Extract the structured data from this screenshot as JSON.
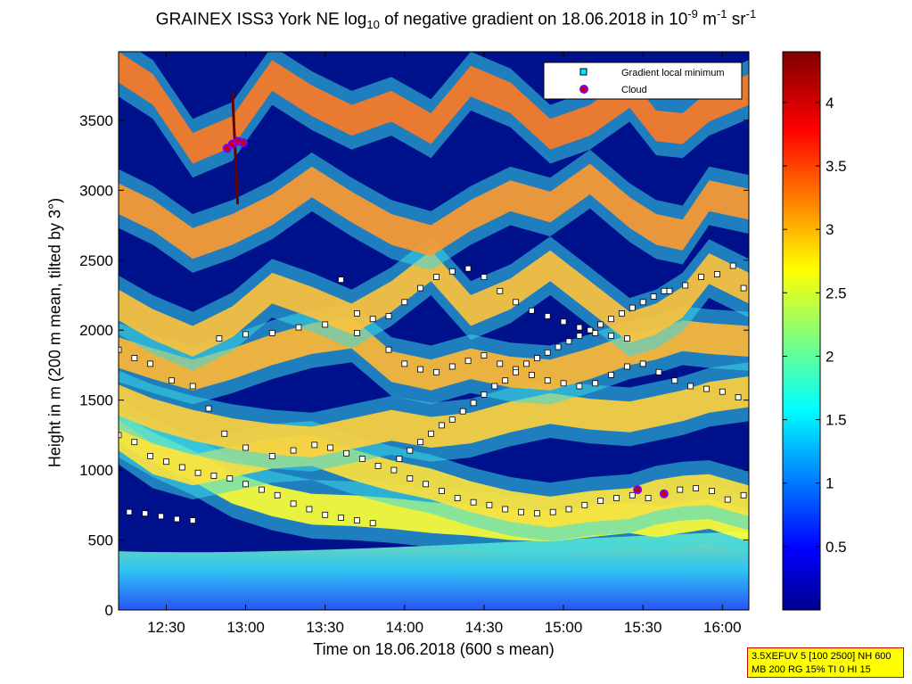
{
  "chart_data": {
    "type": "heatmap",
    "title": {
      "prefix": "GRAINEX ISS3 York NE log",
      "prefix_sub": "10",
      "middle": " of negative gradient on 18.06.2018 in 10",
      "unit_sup1": "-9",
      "unit_mid": " m",
      "unit_sup2": "-1",
      "unit_end": " sr",
      "unit_sup3": "-1"
    },
    "xlabel": "Time on 18.06.2018 (600 s mean)",
    "ylabel": "Height in m (200 m mean, tilted by 3°)",
    "x_ticks": [
      "12:30",
      "13:00",
      "13:30",
      "14:00",
      "14:30",
      "15:00",
      "15:30",
      "16:00"
    ],
    "x_tick_minutes": [
      750,
      780,
      810,
      840,
      870,
      900,
      930,
      960
    ],
    "xlim_minutes": [
      732,
      970
    ],
    "y_ticks": [
      "0",
      "500",
      "1000",
      "1500",
      "2000",
      "2500",
      "3000",
      "3500"
    ],
    "ylim": [
      0,
      3990
    ],
    "colorbar": {
      "ticks": [
        "0.5",
        "1",
        "1.5",
        "2",
        "2.5",
        "3",
        "3.5",
        "4"
      ],
      "range": [
        0,
        4.4
      ],
      "colormap": "jet"
    },
    "legend": {
      "placement": "top-right",
      "entries": [
        {
          "label": "Gradient local minimum",
          "marker": "square",
          "color": "#00e5ff"
        },
        {
          "label": "Cloud",
          "marker": "circle",
          "color": "#cc0000",
          "edge": "#7a00ff"
        }
      ]
    },
    "layers": [
      {
        "name": "inner",
        "color": "#ffff33",
        "points": [
          [
            732,
            1300
          ],
          [
            745,
            1160
          ],
          [
            760,
            1030
          ],
          [
            775,
            870
          ],
          [
            790,
            780
          ],
          [
            805,
            720
          ],
          [
            820,
            710
          ],
          [
            835,
            690
          ],
          [
            850,
            660
          ],
          [
            865,
            640
          ],
          [
            880,
            610
          ],
          [
            895,
            600
          ],
          [
            910,
            630
          ],
          [
            925,
            660
          ],
          [
            935,
            630
          ],
          [
            945,
            660
          ],
          [
            955,
            690
          ],
          [
            970,
            600
          ]
        ]
      },
      {
        "name": "L1",
        "color": "#ffe23a",
        "points": [
          [
            732,
            1250
          ],
          [
            745,
            1080
          ],
          [
            760,
            1000
          ],
          [
            775,
            1060
          ],
          [
            790,
            1120
          ],
          [
            805,
            1140
          ],
          [
            820,
            1040
          ],
          [
            835,
            960
          ],
          [
            850,
            900
          ],
          [
            865,
            810
          ],
          [
            880,
            740
          ],
          [
            895,
            700
          ],
          [
            910,
            740
          ],
          [
            925,
            760
          ],
          [
            935,
            820
          ],
          [
            945,
            850
          ],
          [
            955,
            860
          ],
          [
            970,
            780
          ]
        ]
      },
      {
        "name": "L2",
        "color": "#ffd23a",
        "points": [
          [
            732,
            1500
          ],
          [
            745,
            1400
          ],
          [
            760,
            1320
          ],
          [
            775,
            1260
          ],
          [
            790,
            1220
          ],
          [
            805,
            1200
          ],
          [
            820,
            1260
          ],
          [
            835,
            1320
          ],
          [
            850,
            1270
          ],
          [
            865,
            1300
          ],
          [
            880,
            1380
          ],
          [
            895,
            1440
          ],
          [
            910,
            1400
          ],
          [
            925,
            1380
          ],
          [
            935,
            1420
          ],
          [
            945,
            1460
          ],
          [
            955,
            1520
          ],
          [
            970,
            1560
          ]
        ]
      },
      {
        "name": "L3",
        "color": "#ffb833",
        "points": [
          [
            732,
            1840
          ],
          [
            745,
            1760
          ],
          [
            760,
            1680
          ],
          [
            775,
            1760
          ],
          [
            790,
            1860
          ],
          [
            805,
            1940
          ],
          [
            820,
            1980
          ],
          [
            835,
            1740
          ],
          [
            850,
            1680
          ],
          [
            865,
            1760
          ],
          [
            880,
            1700
          ],
          [
            895,
            1680
          ],
          [
            910,
            1760
          ],
          [
            925,
            1860
          ],
          [
            935,
            1900
          ],
          [
            945,
            1960
          ],
          [
            955,
            1940
          ],
          [
            970,
            1920
          ]
        ]
      },
      {
        "name": "L4",
        "color": "#ffc23a",
        "points": [
          [
            732,
            2180
          ],
          [
            745,
            2040
          ],
          [
            760,
            1920
          ],
          [
            775,
            2060
          ],
          [
            790,
            2300
          ],
          [
            805,
            2200
          ],
          [
            820,
            2080
          ],
          [
            835,
            2240
          ],
          [
            850,
            2460
          ],
          [
            865,
            2140
          ],
          [
            880,
            2260
          ],
          [
            895,
            2460
          ],
          [
            910,
            2240
          ],
          [
            925,
            2020
          ],
          [
            935,
            2080
          ],
          [
            945,
            2200
          ],
          [
            955,
            2440
          ],
          [
            970,
            2300
          ]
        ]
      },
      {
        "name": "L5",
        "color": "#ff9a2e",
        "points": [
          [
            732,
            2940
          ],
          [
            745,
            2820
          ],
          [
            760,
            2620
          ],
          [
            775,
            2720
          ],
          [
            790,
            2860
          ],
          [
            805,
            3060
          ],
          [
            820,
            2880
          ],
          [
            835,
            2720
          ],
          [
            850,
            2640
          ],
          [
            865,
            2820
          ],
          [
            880,
            2960
          ],
          [
            895,
            2880
          ],
          [
            910,
            3080
          ],
          [
            925,
            2840
          ],
          [
            935,
            2720
          ],
          [
            945,
            2680
          ],
          [
            955,
            2960
          ],
          [
            970,
            2900
          ]
        ]
      },
      {
        "name": "L6",
        "color": "#ff7a22",
        "points": [
          [
            732,
            3880
          ],
          [
            745,
            3720
          ],
          [
            760,
            3300
          ],
          [
            775,
            3420
          ],
          [
            790,
            3820
          ],
          [
            805,
            3640
          ],
          [
            820,
            3500
          ],
          [
            835,
            3600
          ],
          [
            850,
            3440
          ],
          [
            865,
            3780
          ],
          [
            880,
            3660
          ],
          [
            895,
            3400
          ],
          [
            910,
            3500
          ],
          [
            925,
            3700
          ],
          [
            935,
            3460
          ],
          [
            945,
            3440
          ],
          [
            955,
            3600
          ],
          [
            970,
            3720
          ]
        ]
      }
    ],
    "series": [
      {
        "name": "Gradient local minimum",
        "points": [
          [
            732,
            1860
          ],
          [
            738,
            1800
          ],
          [
            744,
            1760
          ],
          [
            752,
            1640
          ],
          [
            760,
            1600
          ],
          [
            766,
            1440
          ],
          [
            772,
            1260
          ],
          [
            780,
            1160
          ],
          [
            790,
            1100
          ],
          [
            798,
            1140
          ],
          [
            806,
            1180
          ],
          [
            812,
            1160
          ],
          [
            818,
            1120
          ],
          [
            824,
            1080
          ],
          [
            830,
            1030
          ],
          [
            836,
            1000
          ],
          [
            842,
            940
          ],
          [
            848,
            900
          ],
          [
            854,
            850
          ],
          [
            860,
            800
          ],
          [
            866,
            770
          ],
          [
            872,
            750
          ],
          [
            878,
            720
          ],
          [
            884,
            700
          ],
          [
            890,
            690
          ],
          [
            896,
            700
          ],
          [
            902,
            720
          ],
          [
            908,
            750
          ],
          [
            914,
            780
          ],
          [
            920,
            800
          ],
          [
            926,
            820
          ],
          [
            932,
            800
          ],
          [
            938,
            830
          ],
          [
            944,
            860
          ],
          [
            950,
            870
          ],
          [
            956,
            850
          ],
          [
            962,
            790
          ],
          [
            968,
            820
          ],
          [
            732,
            1250
          ],
          [
            738,
            1200
          ],
          [
            744,
            1100
          ],
          [
            750,
            1060
          ],
          [
            756,
            1020
          ],
          [
            762,
            980
          ],
          [
            768,
            960
          ],
          [
            774,
            940
          ],
          [
            780,
            900
          ],
          [
            786,
            860
          ],
          [
            792,
            820
          ],
          [
            798,
            760
          ],
          [
            804,
            720
          ],
          [
            810,
            680
          ],
          [
            816,
            660
          ],
          [
            822,
            640
          ],
          [
            828,
            620
          ],
          [
            736,
            700
          ],
          [
            742,
            690
          ],
          [
            748,
            670
          ],
          [
            754,
            650
          ],
          [
            760,
            640
          ],
          [
            770,
            1940
          ],
          [
            780,
            1970
          ],
          [
            790,
            1980
          ],
          [
            800,
            2020
          ],
          [
            810,
            2040
          ],
          [
            822,
            1980
          ],
          [
            834,
            1860
          ],
          [
            840,
            1760
          ],
          [
            846,
            1720
          ],
          [
            852,
            1700
          ],
          [
            858,
            1740
          ],
          [
            864,
            1780
          ],
          [
            870,
            1820
          ],
          [
            876,
            1760
          ],
          [
            882,
            1720
          ],
          [
            888,
            1680
          ],
          [
            894,
            1640
          ],
          [
            900,
            1620
          ],
          [
            906,
            1600
          ],
          [
            912,
            1620
          ],
          [
            918,
            1680
          ],
          [
            924,
            1740
          ],
          [
            930,
            1760
          ],
          [
            936,
            1700
          ],
          [
            942,
            1640
          ],
          [
            948,
            1600
          ],
          [
            954,
            1580
          ],
          [
            960,
            1560
          ],
          [
            966,
            1520
          ],
          [
            816,
            2360
          ],
          [
            822,
            2120
          ],
          [
            828,
            2080
          ],
          [
            834,
            2100
          ],
          [
            840,
            2200
          ],
          [
            846,
            2300
          ],
          [
            852,
            2380
          ],
          [
            858,
            2420
          ],
          [
            864,
            2440
          ],
          [
            870,
            2380
          ],
          [
            876,
            2280
          ],
          [
            882,
            2200
          ],
          [
            888,
            2140
          ],
          [
            894,
            2100
          ],
          [
            900,
            2060
          ],
          [
            906,
            2020
          ],
          [
            912,
            1980
          ],
          [
            918,
            1960
          ],
          [
            924,
            1940
          ],
          [
            940,
            2280
          ],
          [
            946,
            2320
          ],
          [
            952,
            2380
          ],
          [
            958,
            2400
          ],
          [
            964,
            2460
          ],
          [
            968,
            2300
          ],
          [
            838,
            1080
          ],
          [
            842,
            1140
          ],
          [
            846,
            1200
          ],
          [
            850,
            1260
          ],
          [
            854,
            1320
          ],
          [
            858,
            1360
          ],
          [
            862,
            1420
          ],
          [
            866,
            1480
          ],
          [
            870,
            1540
          ],
          [
            874,
            1600
          ],
          [
            878,
            1640
          ],
          [
            882,
            1700
          ],
          [
            886,
            1760
          ],
          [
            890,
            1800
          ],
          [
            894,
            1840
          ],
          [
            898,
            1880
          ],
          [
            902,
            1920
          ],
          [
            906,
            1960
          ],
          [
            910,
            2000
          ],
          [
            914,
            2040
          ],
          [
            918,
            2080
          ],
          [
            922,
            2120
          ],
          [
            926,
            2160
          ],
          [
            930,
            2200
          ],
          [
            934,
            2240
          ],
          [
            938,
            2280
          ]
        ]
      },
      {
        "name": "Cloud",
        "points": [
          [
            773,
            3300
          ],
          [
            775,
            3330
          ],
          [
            777,
            3350
          ],
          [
            779,
            3340
          ],
          [
            928,
            860
          ],
          [
            938,
            830
          ]
        ]
      }
    ]
  },
  "infobox": {
    "line1": "3.5XEFUV 5 [100 2500] NH 600",
    "line2": "MB 200 RG 15% TI 0 HI 15"
  }
}
